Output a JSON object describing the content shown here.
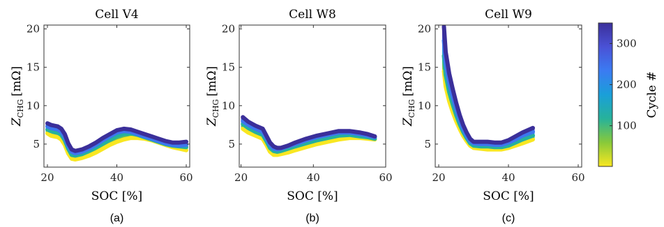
{
  "colorbar": {
    "label": "Cycle #",
    "ticks": [
      100,
      200,
      300
    ],
    "range": [
      1,
      350
    ],
    "colors": [
      "#f9e721",
      "#88c93a",
      "#27b29a",
      "#1a9fd9",
      "#3b7bf2",
      "#4a52d6",
      "#3b2f9a"
    ]
  },
  "chart_data": [
    {
      "type": "line",
      "title": "Cell V4",
      "panel_label": "(a)",
      "xlabel": "SOC [%]",
      "ylabel_main": "Z",
      "ylabel_sub": "CHG",
      "ylabel_unit": "[mΩ]",
      "xlim": [
        19,
        61
      ],
      "ylim": [
        2,
        20.5
      ],
      "xticks": [
        20,
        40,
        60
      ],
      "yticks": [
        5,
        10,
        15,
        20
      ],
      "series": [
        {
          "cycle": 1,
          "x": [
            20,
            21,
            22,
            23,
            24,
            25,
            26,
            27,
            28,
            30,
            32,
            34,
            36,
            38,
            40,
            42,
            44,
            46,
            48,
            50,
            52,
            54,
            56,
            58,
            60
          ],
          "y": [
            6.4,
            6.1,
            6.0,
            5.9,
            5.6,
            4.9,
            3.8,
            3.1,
            3.0,
            3.2,
            3.5,
            3.9,
            4.4,
            4.9,
            5.3,
            5.6,
            5.8,
            5.8,
            5.7,
            5.5,
            5.2,
            4.9,
            4.6,
            4.4,
            4.2
          ]
        },
        {
          "cycle": 120,
          "x": [
            20,
            21,
            22,
            23,
            24,
            25,
            26,
            27,
            28,
            30,
            32,
            34,
            36,
            38,
            40,
            42,
            44,
            46,
            48,
            50,
            52,
            54,
            56,
            58,
            60
          ],
          "y": [
            6.9,
            6.7,
            6.6,
            6.5,
            6.2,
            5.5,
            4.4,
            3.6,
            3.5,
            3.7,
            4.1,
            4.6,
            5.1,
            5.6,
            6.1,
            6.4,
            6.4,
            6.2,
            5.9,
            5.6,
            5.3,
            5.0,
            4.8,
            4.7,
            4.6
          ]
        },
        {
          "cycle": 240,
          "x": [
            20,
            21,
            22,
            23,
            24,
            25,
            26,
            27,
            28,
            30,
            32,
            34,
            36,
            38,
            40,
            42,
            44,
            46,
            48,
            50,
            52,
            54,
            56,
            58,
            60
          ],
          "y": [
            7.3,
            7.1,
            7.0,
            6.9,
            6.6,
            5.9,
            4.8,
            4.0,
            3.8,
            4.0,
            4.4,
            4.9,
            5.5,
            6.0,
            6.5,
            6.7,
            6.6,
            6.3,
            6.0,
            5.7,
            5.4,
            5.1,
            4.9,
            4.8,
            4.9
          ]
        },
        {
          "cycle": 350,
          "x": [
            20,
            21,
            22,
            23,
            24,
            25,
            26,
            27,
            28,
            30,
            32,
            34,
            36,
            38,
            40,
            42,
            44,
            46,
            48,
            50,
            52,
            54,
            56,
            58,
            60
          ],
          "y": [
            7.7,
            7.5,
            7.4,
            7.3,
            7.0,
            6.3,
            5.1,
            4.3,
            4.1,
            4.3,
            4.7,
            5.2,
            5.8,
            6.3,
            6.8,
            7.0,
            6.9,
            6.6,
            6.3,
            6.0,
            5.7,
            5.4,
            5.2,
            5.2,
            5.3
          ]
        }
      ]
    },
    {
      "type": "line",
      "title": "Cell W8",
      "panel_label": "(b)",
      "xlabel": "SOC [%]",
      "ylabel_main": "Z",
      "ylabel_sub": "CHG",
      "ylabel_unit": "[mΩ]",
      "xlim": [
        19.5,
        60
      ],
      "ylim": [
        2,
        20.5
      ],
      "xticks": [
        20,
        40,
        60
      ],
      "yticks": [
        5,
        10,
        15,
        20
      ],
      "series": [
        {
          "cycle": 1,
          "x": [
            20.5,
            22,
            24,
            26,
            27,
            28,
            29,
            30,
            31,
            33,
            35,
            38,
            41,
            44,
            47,
            50,
            53,
            55,
            57
          ],
          "y": [
            7.0,
            6.5,
            6.1,
            5.7,
            4.9,
            4.0,
            3.6,
            3.6,
            3.7,
            3.9,
            4.2,
            4.6,
            5.0,
            5.3,
            5.6,
            5.8,
            5.8,
            5.7,
            5.6
          ]
        },
        {
          "cycle": 120,
          "x": [
            20.5,
            22,
            24,
            26,
            27,
            28,
            29,
            30,
            31,
            33,
            35,
            38,
            41,
            44,
            47,
            50,
            53,
            55,
            57
          ],
          "y": [
            7.6,
            7.1,
            6.6,
            6.2,
            5.4,
            4.5,
            4.1,
            4.0,
            4.1,
            4.4,
            4.7,
            5.1,
            5.5,
            5.8,
            6.1,
            6.2,
            6.0,
            5.9,
            5.7
          ]
        },
        {
          "cycle": 240,
          "x": [
            20.5,
            22,
            24,
            26,
            27,
            28,
            29,
            30,
            31,
            33,
            35,
            38,
            41,
            44,
            47,
            50,
            53,
            55,
            57
          ],
          "y": [
            8.0,
            7.5,
            7.0,
            6.6,
            5.8,
            4.9,
            4.4,
            4.3,
            4.4,
            4.7,
            5.0,
            5.5,
            5.9,
            6.2,
            6.5,
            6.5,
            6.3,
            6.1,
            5.9
          ]
        },
        {
          "cycle": 350,
          "x": [
            20.5,
            22,
            24,
            26,
            27,
            28,
            29,
            30,
            31,
            33,
            35,
            38,
            41,
            44,
            47,
            50,
            53,
            55,
            57
          ],
          "y": [
            8.5,
            7.9,
            7.4,
            7.0,
            6.1,
            5.2,
            4.7,
            4.5,
            4.5,
            4.8,
            5.2,
            5.7,
            6.1,
            6.4,
            6.7,
            6.7,
            6.5,
            6.3,
            6.0
          ]
        }
      ]
    },
    {
      "type": "line",
      "title": "Cell W9",
      "panel_label": "(c)",
      "xlabel": "SOC [%]",
      "ylabel_main": "Z",
      "ylabel_sub": "CHG",
      "ylabel_unit": "[mΩ]",
      "xlim": [
        19,
        61
      ],
      "ylim": [
        2,
        20.5
      ],
      "xticks": [
        20,
        40,
        60
      ],
      "yticks": [
        5,
        10,
        15,
        20
      ],
      "series": [
        {
          "cycle": 1,
          "x": [
            21.5,
            22,
            23,
            24,
            25,
            26,
            27,
            28,
            29,
            30,
            32,
            34,
            36,
            38,
            40,
            42,
            44,
            47
          ],
          "y": [
            14.5,
            12.5,
            10.6,
            9.2,
            8.0,
            7.0,
            6.1,
            5.4,
            4.8,
            4.5,
            4.4,
            4.3,
            4.3,
            4.3,
            4.5,
            4.8,
            5.1,
            5.6
          ]
        },
        {
          "cycle": 120,
          "x": [
            21.5,
            22,
            23,
            24,
            25,
            26,
            27,
            28,
            29,
            30,
            32,
            34,
            36,
            38,
            40,
            42,
            44,
            47
          ],
          "y": [
            16.5,
            14.0,
            11.8,
            10.2,
            8.8,
            7.6,
            6.6,
            5.8,
            5.1,
            4.8,
            4.7,
            4.7,
            4.6,
            4.6,
            4.8,
            5.2,
            5.6,
            6.1
          ]
        },
        {
          "cycle": 240,
          "x": [
            21.5,
            22,
            23,
            24,
            25,
            26,
            27,
            28,
            29,
            30,
            32,
            34,
            36,
            38,
            40,
            42,
            44,
            47
          ],
          "y": [
            18.5,
            15.6,
            13.0,
            11.2,
            9.6,
            8.2,
            7.0,
            6.1,
            5.4,
            5.1,
            5.0,
            5.0,
            4.9,
            4.9,
            5.2,
            5.6,
            6.1,
            6.6
          ]
        },
        {
          "cycle": 350,
          "x": [
            21.5,
            22,
            23,
            24,
            25,
            26,
            27,
            28,
            29,
            30,
            32,
            34,
            36,
            38,
            40,
            42,
            44,
            47
          ],
          "y": [
            20.3,
            17.0,
            14.2,
            12.2,
            10.4,
            8.8,
            7.5,
            6.5,
            5.7,
            5.3,
            5.3,
            5.3,
            5.2,
            5.2,
            5.5,
            6.0,
            6.5,
            7.1
          ]
        }
      ]
    }
  ]
}
